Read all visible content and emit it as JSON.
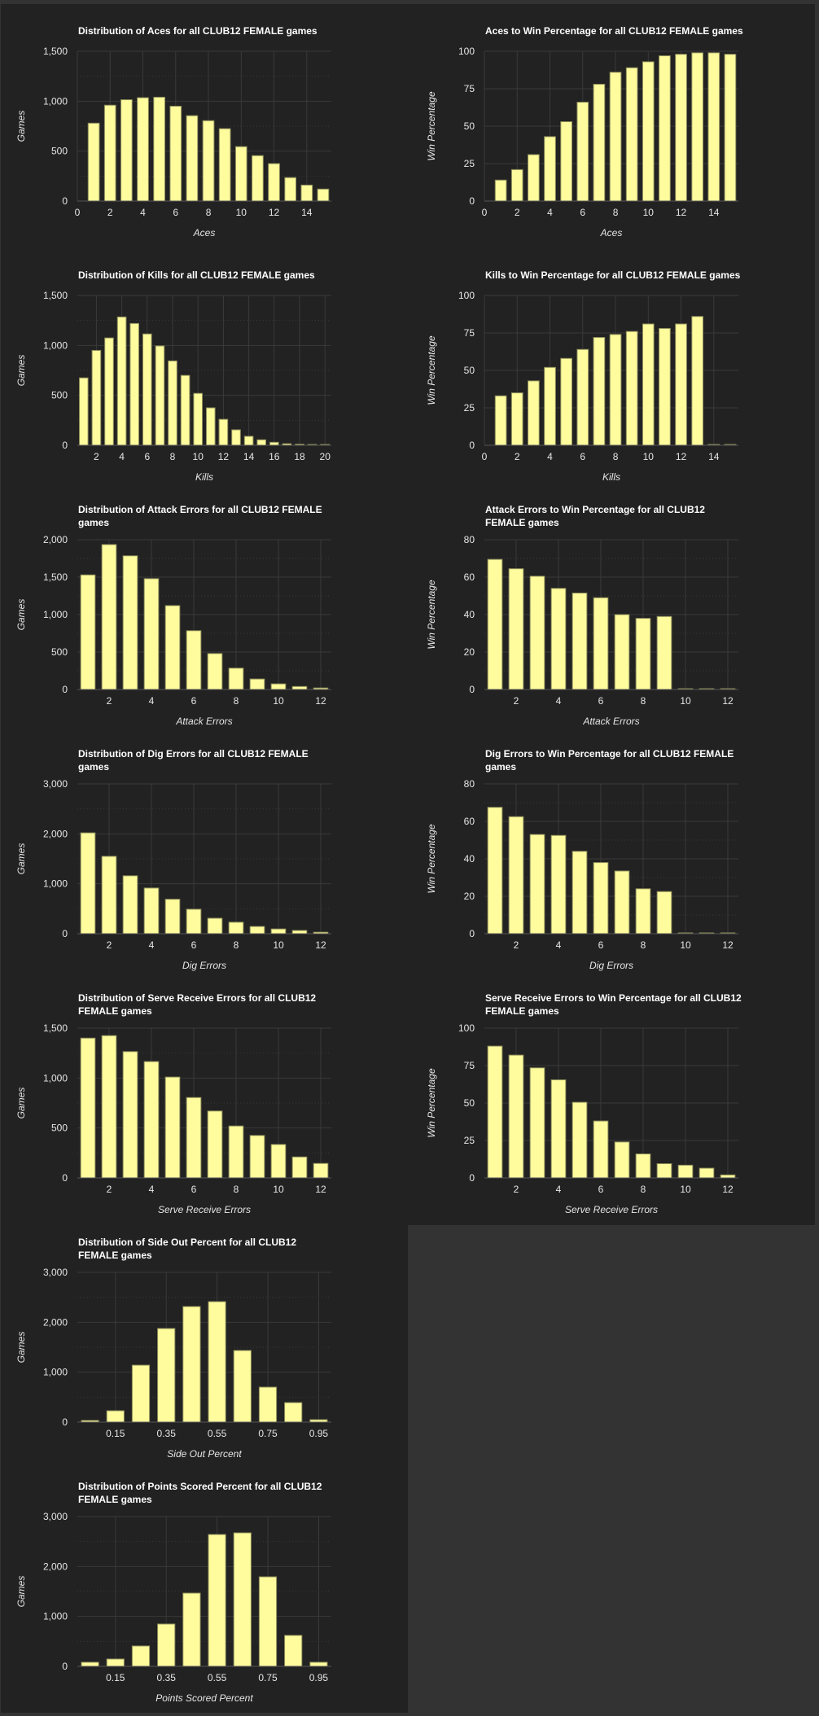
{
  "style": {
    "background": "#222222",
    "page_border": "#333333",
    "bar_fill": "#fffc9e",
    "bar_stroke": "#8f8f5c",
    "grid": "#3a3a3a",
    "text": "#e6e6e6"
  },
  "chart_data": [
    {
      "id": "aces-dist",
      "column": 0,
      "row": 0,
      "type": "bar",
      "title": "Distribution of Aces for all CLUB12 FEMALE games",
      "xlabel": "Aces",
      "ylabel": "Games",
      "xlim": [
        0,
        15.5
      ],
      "ylim": [
        0,
        1500
      ],
      "x_ticks": [
        0,
        2,
        4,
        6,
        8,
        10,
        12,
        14
      ],
      "x_tick_labels": [
        "0",
        "2",
        "4",
        "6",
        "8",
        "10",
        "12",
        "14"
      ],
      "y_ticks": [
        0,
        500,
        1000,
        1500
      ],
      "y_tick_labels": [
        "0",
        "500",
        "1,000",
        "1,500"
      ],
      "minor_grid": true,
      "x": [
        1,
        2,
        3,
        4,
        5,
        6,
        7,
        8,
        9,
        10,
        11,
        12,
        13,
        14,
        15
      ],
      "values": [
        780,
        960,
        1015,
        1035,
        1040,
        950,
        855,
        805,
        725,
        545,
        455,
        375,
        235,
        160,
        120
      ]
    },
    {
      "id": "aces-win",
      "column": 1,
      "row": 0,
      "type": "bar",
      "title": "Aces to Win Percentage for all CLUB12 FEMALE games",
      "xlabel": "Aces",
      "ylabel": "Win Percentage",
      "xlim": [
        0,
        15.5
      ],
      "ylim": [
        0,
        100
      ],
      "x_ticks": [
        0,
        2,
        4,
        6,
        8,
        10,
        12,
        14
      ],
      "x_tick_labels": [
        "0",
        "2",
        "4",
        "6",
        "8",
        "10",
        "12",
        "14"
      ],
      "y_ticks": [
        0,
        25,
        50,
        75,
        100
      ],
      "y_tick_labels": [
        "0",
        "25",
        "50",
        "75",
        "100"
      ],
      "minor_grid": false,
      "x": [
        1,
        2,
        3,
        4,
        5,
        6,
        7,
        8,
        9,
        10,
        11,
        12,
        13,
        14,
        15
      ],
      "values": [
        14,
        21,
        31,
        43,
        53,
        66,
        78,
        86,
        89,
        93,
        97,
        98,
        99,
        99,
        98
      ]
    },
    {
      "id": "kills-dist",
      "column": 0,
      "row": 1,
      "type": "bar",
      "title": "Distribution of Kills for all CLUB12 FEMALE games",
      "xlabel": "Kills",
      "ylabel": "Games",
      "xlim": [
        0.5,
        20.5
      ],
      "ylim": [
        0,
        1500
      ],
      "x_ticks": [
        2,
        4,
        6,
        8,
        10,
        12,
        14,
        16,
        18,
        20
      ],
      "x_tick_labels": [
        "2",
        "4",
        "6",
        "8",
        "10",
        "12",
        "14",
        "16",
        "18",
        "20"
      ],
      "y_ticks": [
        0,
        500,
        1000,
        1500
      ],
      "y_tick_labels": [
        "0",
        "500",
        "1,000",
        "1,500"
      ],
      "minor_grid": true,
      "x": [
        1,
        2,
        3,
        4,
        5,
        6,
        7,
        8,
        9,
        10,
        11,
        12,
        13,
        14,
        15,
        16,
        17,
        18,
        19,
        20
      ],
      "values": [
        675,
        950,
        1075,
        1285,
        1220,
        1115,
        995,
        845,
        700,
        520,
        375,
        260,
        155,
        90,
        55,
        30,
        15,
        10,
        2,
        3
      ]
    },
    {
      "id": "kills-win",
      "column": 1,
      "row": 1,
      "type": "bar",
      "title": "Kills to Win Percentage for all CLUB12 FEMALE games",
      "xlabel": "Kills",
      "ylabel": "Win Percentage",
      "xlim": [
        0,
        15.5
      ],
      "ylim": [
        0,
        100
      ],
      "x_ticks": [
        0,
        2,
        4,
        6,
        8,
        10,
        12,
        14
      ],
      "x_tick_labels": [
        "0",
        "2",
        "4",
        "6",
        "8",
        "10",
        "12",
        "14"
      ],
      "y_ticks": [
        0,
        25,
        50,
        75,
        100
      ],
      "y_tick_labels": [
        "0",
        "25",
        "50",
        "75",
        "100"
      ],
      "minor_grid": false,
      "x": [
        1,
        2,
        3,
        4,
        5,
        6,
        7,
        8,
        9,
        10,
        11,
        12,
        13,
        14,
        15
      ],
      "values": [
        33,
        35,
        43,
        52,
        58,
        64,
        72,
        74,
        76,
        81,
        78,
        81,
        86,
        0,
        0
      ]
    },
    {
      "id": "attack-errors-dist",
      "column": 0,
      "row": 2,
      "type": "bar",
      "title": "Distribution of Attack Errors for all CLUB12 FEMALE games",
      "xlabel": "Attack Errors",
      "ylabel": "Games",
      "xlim": [
        0.5,
        12.5
      ],
      "ylim": [
        0,
        2000
      ],
      "x_ticks": [
        2,
        4,
        6,
        8,
        10,
        12
      ],
      "x_tick_labels": [
        "2",
        "4",
        "6",
        "8",
        "10",
        "12"
      ],
      "y_ticks": [
        0,
        500,
        1000,
        1500,
        2000
      ],
      "y_tick_labels": [
        "0",
        "500",
        "1,000",
        "1,500",
        "2,000"
      ],
      "minor_grid": true,
      "x": [
        1,
        2,
        3,
        4,
        5,
        6,
        7,
        8,
        9,
        10,
        11,
        12
      ],
      "values": [
        1530,
        1935,
        1785,
        1480,
        1120,
        785,
        480,
        285,
        140,
        75,
        40,
        20
      ]
    },
    {
      "id": "attack-errors-win",
      "column": 1,
      "row": 2,
      "type": "bar",
      "title": "Attack Errors to Win Percentage for all CLUB12 FEMALE games",
      "xlabel": "Attack Errors",
      "ylabel": "Win Percentage",
      "xlim": [
        0.5,
        12.5
      ],
      "ylim": [
        0,
        80
      ],
      "x_ticks": [
        2,
        4,
        6,
        8,
        10,
        12
      ],
      "x_tick_labels": [
        "2",
        "4",
        "6",
        "8",
        "10",
        "12"
      ],
      "y_ticks": [
        0,
        20,
        40,
        60,
        80
      ],
      "y_tick_labels": [
        "0",
        "20",
        "40",
        "60",
        "80"
      ],
      "minor_grid": true,
      "x": [
        1,
        2,
        3,
        4,
        5,
        6,
        7,
        8,
        9,
        10,
        11,
        12
      ],
      "values": [
        69.5,
        64.5,
        60.5,
        54,
        51.5,
        49,
        40,
        38,
        39,
        0,
        0,
        0
      ]
    },
    {
      "id": "dig-errors-dist",
      "column": 0,
      "row": 3,
      "type": "bar",
      "title": "Distribution of Dig Errors for all CLUB12 FEMALE games",
      "xlabel": "Dig Errors",
      "ylabel": "Games",
      "xlim": [
        0.5,
        12.5
      ],
      "ylim": [
        0,
        3000
      ],
      "x_ticks": [
        2,
        4,
        6,
        8,
        10,
        12
      ],
      "x_tick_labels": [
        "2",
        "4",
        "6",
        "8",
        "10",
        "12"
      ],
      "y_ticks": [
        0,
        1000,
        2000,
        3000
      ],
      "y_tick_labels": [
        "0",
        "1,000",
        "2,000",
        "3,000"
      ],
      "minor_grid": true,
      "x": [
        1,
        2,
        3,
        4,
        5,
        6,
        7,
        8,
        9,
        10,
        11,
        12
      ],
      "values": [
        2020,
        1550,
        1160,
        915,
        690,
        490,
        310,
        230,
        145,
        95,
        65,
        30
      ]
    },
    {
      "id": "dig-errors-win",
      "column": 1,
      "row": 3,
      "type": "bar",
      "title": "Dig Errors to Win Percentage for all CLUB12 FEMALE games",
      "xlabel": "Dig Errors",
      "ylabel": "Win Percentage",
      "xlim": [
        0.5,
        12.5
      ],
      "ylim": [
        0,
        80
      ],
      "x_ticks": [
        2,
        4,
        6,
        8,
        10,
        12
      ],
      "x_tick_labels": [
        "2",
        "4",
        "6",
        "8",
        "10",
        "12"
      ],
      "y_ticks": [
        0,
        20,
        40,
        60,
        80
      ],
      "y_tick_labels": [
        "0",
        "20",
        "40",
        "60",
        "80"
      ],
      "minor_grid": true,
      "x": [
        1,
        2,
        3,
        4,
        5,
        6,
        7,
        8,
        9,
        10,
        11,
        12
      ],
      "values": [
        67.5,
        62.5,
        53,
        52.5,
        44,
        38,
        33.5,
        24,
        22.5,
        0,
        0,
        0
      ]
    },
    {
      "id": "serve-receive-errors-dist",
      "column": 0,
      "row": 4,
      "type": "bar",
      "title": "Distribution of Serve Receive Errors for all CLUB12 FEMALE games",
      "xlabel": "Serve Receive Errors",
      "ylabel": "Games",
      "xlim": [
        0.5,
        12.5
      ],
      "ylim": [
        0,
        1500
      ],
      "x_ticks": [
        2,
        4,
        6,
        8,
        10,
        12
      ],
      "x_tick_labels": [
        "2",
        "4",
        "6",
        "8",
        "10",
        "12"
      ],
      "y_ticks": [
        0,
        500,
        1000,
        1500
      ],
      "y_tick_labels": [
        "0",
        "500",
        "1,000",
        "1,500"
      ],
      "minor_grid": true,
      "x": [
        1,
        2,
        3,
        4,
        5,
        6,
        7,
        8,
        9,
        10,
        11,
        12
      ],
      "values": [
        1400,
        1425,
        1265,
        1165,
        1010,
        805,
        670,
        520,
        425,
        335,
        210,
        145
      ]
    },
    {
      "id": "serve-receive-errors-win",
      "column": 1,
      "row": 4,
      "type": "bar",
      "title": "Serve Receive Errors to Win Percentage for all CLUB12 FEMALE games",
      "xlabel": "Serve Receive Errors",
      "ylabel": "Win Percentage",
      "xlim": [
        0.5,
        12.5
      ],
      "ylim": [
        0,
        100
      ],
      "x_ticks": [
        2,
        4,
        6,
        8,
        10,
        12
      ],
      "x_tick_labels": [
        "2",
        "4",
        "6",
        "8",
        "10",
        "12"
      ],
      "y_ticks": [
        0,
        25,
        50,
        75,
        100
      ],
      "y_tick_labels": [
        "0",
        "25",
        "50",
        "75",
        "100"
      ],
      "minor_grid": false,
      "x": [
        1,
        2,
        3,
        4,
        5,
        6,
        7,
        8,
        9,
        10,
        11,
        12
      ],
      "values": [
        88,
        82,
        73.5,
        65.5,
        50.5,
        38,
        24,
        16,
        9.5,
        8.5,
        6.5,
        2
      ]
    },
    {
      "id": "side-out-percent-dist",
      "column": 0,
      "row": 5,
      "type": "bar",
      "title": "Distribution of Side Out Percent for all CLUB12 FEMALE games",
      "xlabel": "Side Out Percent",
      "ylabel": "Games",
      "xlim": [
        0,
        1
      ],
      "ylim": [
        0,
        3000
      ],
      "x_ticks": [
        0.15,
        0.35,
        0.55,
        0.75,
        0.95
      ],
      "x_tick_labels": [
        "0.15",
        "0.35",
        "0.55",
        "0.75",
        "0.95"
      ],
      "y_ticks": [
        0,
        1000,
        2000,
        3000
      ],
      "y_tick_labels": [
        "0",
        "1,000",
        "2,000",
        "3,000"
      ],
      "minor_grid": true,
      "x": [
        0.05,
        0.15,
        0.25,
        0.35,
        0.45,
        0.55,
        0.65,
        0.75,
        0.85,
        0.95
      ],
      "values": [
        33,
        228,
        1141,
        1875,
        2315,
        2413,
        1435,
        701,
        391,
        49
      ]
    },
    {
      "id": "points-scored-percent-dist",
      "column": 0,
      "row": 6,
      "type": "bar",
      "title": "Distribution of Points Scored Percent for all CLUB12 FEMALE games",
      "xlabel": "Points Scored Percent",
      "ylabel": "Games",
      "xlim": [
        0,
        1
      ],
      "ylim": [
        0,
        3000
      ],
      "x_ticks": [
        0.15,
        0.35,
        0.55,
        0.75,
        0.95
      ],
      "x_tick_labels": [
        "0.15",
        "0.35",
        "0.55",
        "0.75",
        "0.95"
      ],
      "y_ticks": [
        0,
        1000,
        2000,
        3000
      ],
      "y_tick_labels": [
        "0",
        "1,000",
        "2,000",
        "3,000"
      ],
      "minor_grid": true,
      "x": [
        0.05,
        0.15,
        0.25,
        0.35,
        0.45,
        0.55,
        0.65,
        0.75,
        0.85,
        0.95
      ],
      "values": [
        82,
        147,
        408,
        848,
        1467,
        2641,
        2674,
        1793,
        620,
        82
      ]
    }
  ]
}
